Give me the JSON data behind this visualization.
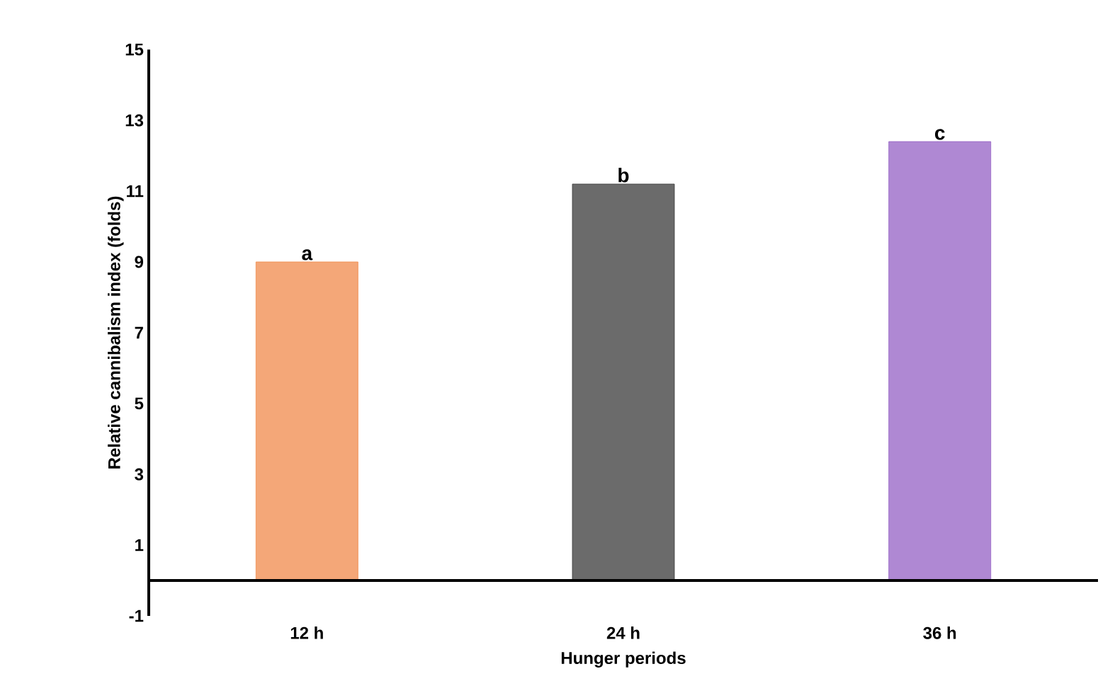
{
  "chart_data": {
    "type": "bar",
    "xlabel": "Hunger periods",
    "ylabel": "Relative cannibalism index (folds)",
    "categories": [
      "12 h",
      "24 h",
      "36 h"
    ],
    "values": [
      9.0,
      11.2,
      12.4
    ],
    "colors": [
      "#f08a4b",
      "#3a3a3a",
      "#9461c4"
    ],
    "ylim": [
      -1,
      15
    ],
    "yticks": [
      -1,
      1,
      3,
      5,
      7,
      9,
      11,
      13,
      15
    ],
    "annotations": [
      {
        "text": "a",
        "x": "12 h",
        "y": 9.0
      },
      {
        "text": "b",
        "x": "24 h",
        "y": 11.2
      },
      {
        "text": "c",
        "x": "36 h",
        "y": 12.4
      }
    ]
  }
}
